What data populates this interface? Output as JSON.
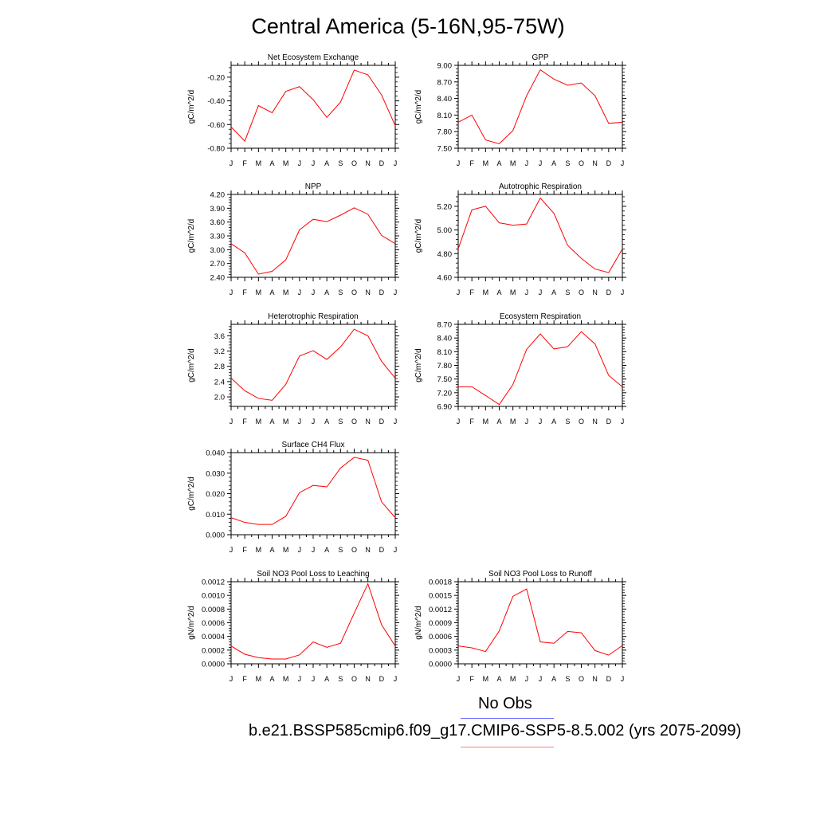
{
  "figure": {
    "title": "Central America (5-16N,95-75W)",
    "legend": {
      "obs_label": "No Obs",
      "case_label": "b.e21.BSSP585cmip6.f09_g17.CMIP6-SSP5-8.5.002 (yrs 2075-2099)",
      "obs_color": "#6f6fff",
      "case_color": "#ff7f7f"
    }
  },
  "colors": {
    "series": "#ff0000",
    "axis": "#000000"
  },
  "chart_data": [
    {
      "type": "line",
      "title": "Net Ecosystem Exchange",
      "ylabel": "gC/m^2/d",
      "x": [
        "J",
        "F",
        "M",
        "A",
        "M",
        "J",
        "J",
        "A",
        "S",
        "O",
        "N",
        "D",
        "J"
      ],
      "ylim": [
        -0.8,
        -0.1
      ],
      "yticks": [
        -0.8,
        -0.6,
        -0.4,
        -0.2
      ],
      "ytick_labels": [
        "-0.80",
        "-0.60",
        "-0.40",
        "-0.20"
      ],
      "series": [
        {
          "values": [
            -0.62,
            -0.74,
            -0.44,
            -0.5,
            -0.32,
            -0.28,
            -0.39,
            -0.54,
            -0.41,
            -0.14,
            -0.18,
            -0.35,
            -0.61
          ]
        }
      ]
    },
    {
      "type": "line",
      "title": "GPP",
      "ylabel": "gC/m^2/d",
      "x": [
        "J",
        "F",
        "M",
        "A",
        "M",
        "J",
        "J",
        "A",
        "S",
        "O",
        "N",
        "D",
        "J"
      ],
      "ylim": [
        7.5,
        9.0
      ],
      "yticks": [
        7.5,
        7.8,
        8.1,
        8.4,
        8.7,
        9.0
      ],
      "ytick_labels": [
        "7.50",
        "7.80",
        "8.10",
        "8.40",
        "8.70",
        "9.00"
      ],
      "series": [
        {
          "values": [
            7.97,
            8.1,
            7.65,
            7.58,
            7.82,
            8.45,
            8.92,
            8.75,
            8.64,
            8.68,
            8.45,
            7.95,
            7.97
          ]
        }
      ]
    },
    {
      "type": "line",
      "title": "NPP",
      "ylabel": "gC/m^2/d",
      "x": [
        "J",
        "F",
        "M",
        "A",
        "M",
        "J",
        "J",
        "A",
        "S",
        "O",
        "N",
        "D",
        "J"
      ],
      "ylim": [
        2.4,
        4.2
      ],
      "yticks": [
        2.4,
        2.7,
        3.0,
        3.3,
        3.6,
        3.9,
        4.2
      ],
      "ytick_labels": [
        "2.40",
        "2.70",
        "3.00",
        "3.30",
        "3.60",
        "3.90",
        "4.20"
      ],
      "series": [
        {
          "values": [
            3.13,
            2.93,
            2.47,
            2.53,
            2.78,
            3.43,
            3.66,
            3.61,
            3.75,
            3.91,
            3.77,
            3.31,
            3.13
          ]
        }
      ]
    },
    {
      "type": "line",
      "title": "Autotrophic Respiration",
      "ylabel": "gC/m^2/d",
      "x": [
        "J",
        "F",
        "M",
        "A",
        "M",
        "J",
        "J",
        "A",
        "S",
        "O",
        "N",
        "D",
        "J"
      ],
      "ylim": [
        4.6,
        5.3
      ],
      "yticks": [
        4.6,
        4.8,
        5.0,
        5.2
      ],
      "ytick_labels": [
        "4.60",
        "4.80",
        "5.00",
        "5.20"
      ],
      "series": [
        {
          "values": [
            4.84,
            5.17,
            5.2,
            5.06,
            5.04,
            5.05,
            5.27,
            5.14,
            4.87,
            4.76,
            4.67,
            4.64,
            4.84
          ]
        }
      ]
    },
    {
      "type": "line",
      "title": "Heterotrophic Respiration",
      "ylabel": "gC/m^2/d",
      "x": [
        "J",
        "F",
        "M",
        "A",
        "M",
        "J",
        "J",
        "A",
        "S",
        "O",
        "N",
        "D",
        "J"
      ],
      "ylim": [
        1.75,
        3.9
      ],
      "yticks": [
        2.0,
        2.4,
        2.8,
        3.2,
        3.6
      ],
      "ytick_labels": [
        "2.0",
        "2.4",
        "2.8",
        "3.2",
        "3.6"
      ],
      "series": [
        {
          "values": [
            2.49,
            2.16,
            1.96,
            1.91,
            2.33,
            3.07,
            3.21,
            2.98,
            3.31,
            3.77,
            3.6,
            2.93,
            2.49
          ]
        }
      ]
    },
    {
      "type": "line",
      "title": "Ecosystem Respiration",
      "ylabel": "gC/m^2/d",
      "x": [
        "J",
        "F",
        "M",
        "A",
        "M",
        "J",
        "J",
        "A",
        "S",
        "O",
        "N",
        "D",
        "J"
      ],
      "ylim": [
        6.9,
        8.7
      ],
      "yticks": [
        6.9,
        7.2,
        7.5,
        7.8,
        8.1,
        8.4,
        8.7
      ],
      "ytick_labels": [
        "6.90",
        "7.20",
        "7.50",
        "7.80",
        "8.10",
        "8.40",
        "8.70"
      ],
      "series": [
        {
          "values": [
            7.33,
            7.33,
            7.14,
            6.94,
            7.38,
            8.15,
            8.49,
            8.16,
            8.21,
            8.54,
            8.27,
            7.58,
            7.33
          ]
        }
      ]
    },
    {
      "type": "line",
      "title": "Surface CH4 Flux",
      "ylabel": "gC/m^2/d",
      "x": [
        "J",
        "F",
        "M",
        "A",
        "M",
        "J",
        "J",
        "A",
        "S",
        "O",
        "N",
        "D",
        "J"
      ],
      "ylim": [
        0.0,
        0.04
      ],
      "yticks": [
        0.0,
        0.01,
        0.02,
        0.03,
        0.04
      ],
      "ytick_labels": [
        "0.000",
        "0.010",
        "0.020",
        "0.030",
        "0.040"
      ],
      "series": [
        {
          "values": [
            0.0083,
            0.006,
            0.005,
            0.005,
            0.009,
            0.0205,
            0.024,
            0.0233,
            0.0325,
            0.0377,
            0.0363,
            0.016,
            0.0083
          ]
        }
      ]
    },
    {
      "type": "line",
      "title": "Soil NO3 Pool Loss to Leaching",
      "ylabel": "gN/m^2/d",
      "x": [
        "J",
        "F",
        "M",
        "A",
        "M",
        "J",
        "J",
        "A",
        "S",
        "O",
        "N",
        "D",
        "J"
      ],
      "ylim": [
        0.0,
        0.0012
      ],
      "yticks": [
        0.0,
        0.0002,
        0.0004,
        0.0006,
        0.0008,
        0.001,
        0.0012
      ],
      "ytick_labels": [
        "0.0000",
        "0.0002",
        "0.0004",
        "0.0006",
        "0.0008",
        "0.0010",
        "0.0012"
      ],
      "series": [
        {
          "values": [
            0.00026,
            0.00014,
            9e-05,
            7e-05,
            7e-05,
            0.00013,
            0.00032,
            0.00024,
            0.0003,
            0.00074,
            0.00117,
            0.00057,
            0.00026
          ]
        }
      ]
    },
    {
      "type": "line",
      "title": "Soil NO3 Pool Loss to Runoff",
      "ylabel": "gN/m^2/d",
      "x": [
        "J",
        "F",
        "M",
        "A",
        "M",
        "J",
        "J",
        "A",
        "S",
        "O",
        "N",
        "D",
        "J"
      ],
      "ylim": [
        0.0,
        0.0018
      ],
      "yticks": [
        0.0,
        0.0003,
        0.0006,
        0.0009,
        0.0012,
        0.0015,
        0.0018
      ],
      "ytick_labels": [
        "0.0000",
        "0.0003",
        "0.0006",
        "0.0009",
        "0.0012",
        "0.0015",
        "0.0018"
      ],
      "series": [
        {
          "values": [
            0.00039,
            0.00035,
            0.00027,
            0.00072,
            0.00148,
            0.00164,
            0.00048,
            0.00045,
            0.00071,
            0.00068,
            0.00029,
            0.00019,
            0.0004
          ]
        }
      ]
    }
  ]
}
